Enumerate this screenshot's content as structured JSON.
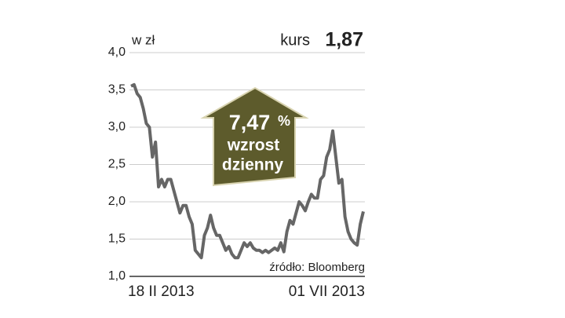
{
  "chart_data": {
    "type": "line",
    "y_unit": "w zł",
    "current_label": "kurs",
    "current_value": "1,87",
    "annotation": {
      "value": "7,47",
      "unit": "%",
      "line1": "wzrost",
      "line2": "dzienny"
    },
    "source": "źródło: Bloomberg",
    "categories": [
      "18 II 2013",
      null,
      null,
      null,
      null,
      null,
      null,
      null,
      null,
      null,
      null,
      null,
      null,
      null,
      null,
      null,
      null,
      null,
      null,
      null,
      null,
      null,
      null,
      null,
      null,
      null,
      null,
      null,
      null,
      null,
      null,
      null,
      null,
      null,
      null,
      null,
      null,
      null,
      null,
      null,
      null,
      null,
      null,
      null,
      null,
      null,
      null,
      null,
      null,
      null,
      null,
      null,
      null,
      null,
      null,
      null,
      null,
      null,
      null,
      null,
      null,
      null,
      null,
      null,
      null,
      null,
      null,
      null,
      null,
      null,
      null,
      null,
      null,
      null,
      null,
      null,
      "01 VII 2013"
    ],
    "series": [
      {
        "name": "kurs",
        "color": "#666666",
        "values": [
          3.55,
          3.57,
          3.45,
          3.4,
          3.25,
          3.05,
          3.0,
          2.6,
          2.8,
          2.2,
          2.3,
          2.2,
          2.3,
          2.3,
          2.15,
          2.0,
          1.85,
          1.95,
          1.95,
          1.8,
          1.7,
          1.35,
          1.3,
          1.25,
          1.55,
          1.65,
          1.82,
          1.65,
          1.55,
          1.55,
          1.45,
          1.35,
          1.4,
          1.3,
          1.25,
          1.25,
          1.35,
          1.45,
          1.4,
          1.45,
          1.38,
          1.35,
          1.35,
          1.32,
          1.35,
          1.32,
          1.35,
          1.38,
          1.35,
          1.45,
          1.33,
          1.6,
          1.75,
          1.7,
          1.85,
          2.0,
          1.95,
          1.88,
          2.0,
          2.1,
          2.05,
          2.05,
          2.3,
          2.35,
          2.6,
          2.7,
          2.95,
          2.6,
          2.25,
          2.3,
          1.8,
          1.6,
          1.5,
          1.45,
          1.42,
          1.7,
          1.87
        ]
      }
    ],
    "ylim": [
      1,
      4
    ],
    "yticks": [
      {
        "value": 1,
        "label": "1,0"
      },
      {
        "value": 1.5,
        "label": "1,5"
      },
      {
        "value": 2,
        "label": "2,0"
      },
      {
        "value": 2.5,
        "label": "2,5"
      },
      {
        "value": 3,
        "label": "3,0"
      },
      {
        "value": 3.5,
        "label": "3,5"
      },
      {
        "value": 4,
        "label": "4,0"
      }
    ],
    "grid": true
  }
}
